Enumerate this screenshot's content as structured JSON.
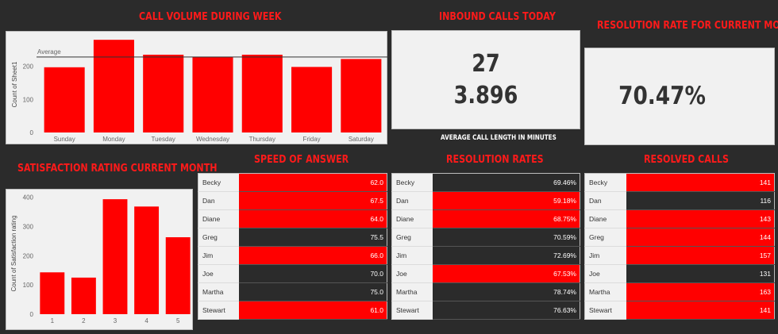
{
  "colors": {
    "background": "#2b2b2b",
    "accent": "#ff0000",
    "panel": "#f1f1f1",
    "dark_cell": "#2b2b2b"
  },
  "titles": {
    "call_volume": "CALL VOLUME DURING WEEK",
    "inbound": "INBOUND CALLS TODAY",
    "resolution_rate": "RESOLUTION RATE FOR CURRENT MONTH",
    "satisfaction": "SATISFACTION RATING CURRENT MONTH",
    "speed": "SPEED OF ANSWER",
    "resolution_rates": "RESOLUTION RATES",
    "resolved": "RESOLVED CALLS"
  },
  "kpi": {
    "inbound_calls": "27",
    "avg_call_length": "3.896",
    "avg_call_caption": "AVERAGE CALL LENGTH IN MINUTES",
    "resolution_rate": "70.47%"
  },
  "chart_data": [
    {
      "type": "bar",
      "categories": [
        "Sunday",
        "Monday",
        "Tuesday",
        "Wednesday",
        "Thursday",
        "Friday",
        "Saturday"
      ],
      "values": [
        197,
        280,
        235,
        228,
        235,
        198,
        222
      ],
      "ylabel": "Count of Sheet1",
      "yticks": [
        0,
        100,
        200
      ],
      "ylim": [
        0,
        290
      ],
      "reference_line": {
        "label": "Average",
        "value": 228
      },
      "color": "#ff0000"
    },
    {
      "type": "bar",
      "categories": [
        "1",
        "2",
        "3",
        "4",
        "5"
      ],
      "values": [
        143,
        125,
        393,
        368,
        263
      ],
      "ylabel": "Count of Satisfaction rating",
      "yticks": [
        0,
        100,
        200,
        300,
        400
      ],
      "ylim": [
        0,
        415
      ],
      "color": "#ff0000"
    }
  ],
  "tables": {
    "speed": [
      {
        "name": "Becky",
        "value": "62.0",
        "color": "red"
      },
      {
        "name": "Dan",
        "value": "67.5",
        "color": "red"
      },
      {
        "name": "Diane",
        "value": "64.0",
        "color": "red"
      },
      {
        "name": "Greg",
        "value": "75.5",
        "color": "dark"
      },
      {
        "name": "Jim",
        "value": "66.0",
        "color": "red"
      },
      {
        "name": "Joe",
        "value": "70.0",
        "color": "dark"
      },
      {
        "name": "Martha",
        "value": "75.0",
        "color": "dark"
      },
      {
        "name": "Stewart",
        "value": "61.0",
        "color": "red"
      }
    ],
    "resolution": [
      {
        "name": "Becky",
        "value": "69.46%",
        "color": "dark"
      },
      {
        "name": "Dan",
        "value": "59.18%",
        "color": "red"
      },
      {
        "name": "Diane",
        "value": "68.75%",
        "color": "red"
      },
      {
        "name": "Greg",
        "value": "70.59%",
        "color": "dark"
      },
      {
        "name": "Jim",
        "value": "72.69%",
        "color": "dark"
      },
      {
        "name": "Joe",
        "value": "67.53%",
        "color": "red"
      },
      {
        "name": "Martha",
        "value": "78.74%",
        "color": "dark"
      },
      {
        "name": "Stewart",
        "value": "76.63%",
        "color": "dark"
      }
    ],
    "resolved": [
      {
        "name": "Becky",
        "value": "141",
        "color": "red"
      },
      {
        "name": "Dan",
        "value": "116",
        "color": "dark"
      },
      {
        "name": "Diane",
        "value": "143",
        "color": "red"
      },
      {
        "name": "Greg",
        "value": "144",
        "color": "red"
      },
      {
        "name": "Jim",
        "value": "157",
        "color": "red"
      },
      {
        "name": "Joe",
        "value": "131",
        "color": "dark"
      },
      {
        "name": "Martha",
        "value": "163",
        "color": "red"
      },
      {
        "name": "Stewart",
        "value": "141",
        "color": "red"
      }
    ]
  }
}
